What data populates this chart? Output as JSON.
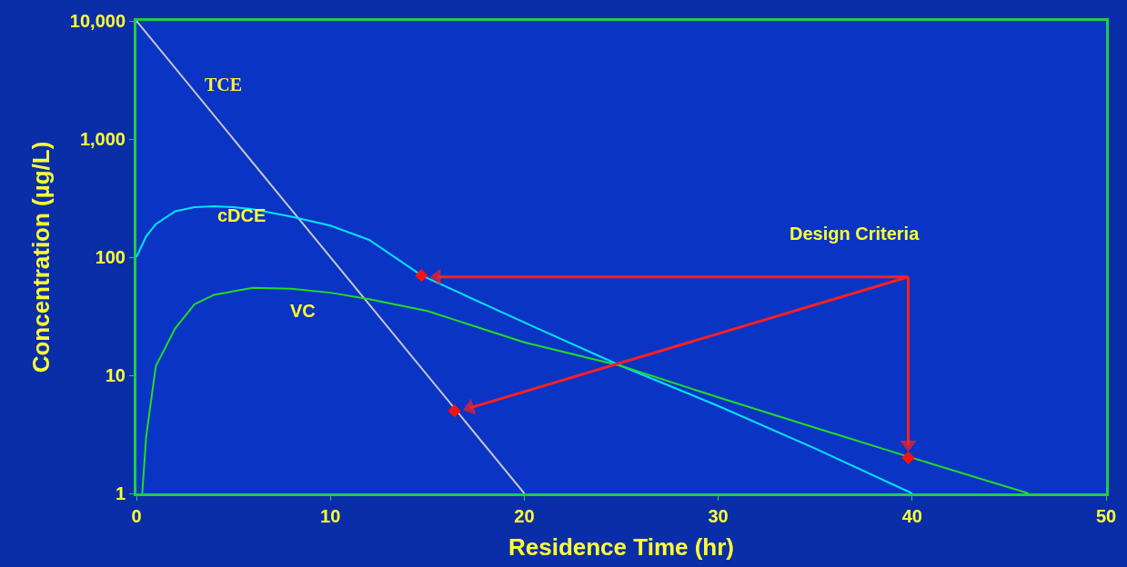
{
  "chart_data": {
    "type": "line",
    "xlabel": "Residence Time (hr)",
    "ylabel": "Concentration (µg/L)",
    "xlim": [
      0,
      50
    ],
    "xticks": [
      0,
      10,
      20,
      30,
      40,
      50
    ],
    "ylim": [
      1,
      10000
    ],
    "log": true,
    "yticks": [
      1,
      10,
      100,
      {
        "value": 1000,
        "label": "1,000"
      },
      {
        "value": 10000,
        "label": "10,000"
      }
    ],
    "grid": false,
    "marker": "none",
    "line_style": "solid",
    "series": [
      {
        "name": "TCE",
        "color": "#c8c8c8",
        "x": [
          0,
          20
        ],
        "values": [
          10000,
          1
        ]
      },
      {
        "name": "cDCE",
        "color": "#00e5ff",
        "x": [
          0,
          0.5,
          1,
          2,
          3,
          4,
          5,
          6,
          8,
          10,
          12,
          14.7,
          20,
          25,
          30,
          35,
          40
        ],
        "values": [
          100,
          150,
          190,
          245,
          265,
          270,
          265,
          255,
          220,
          185,
          140,
          70,
          28,
          12,
          5.5,
          2.4,
          1
        ]
      },
      {
        "name": "VC",
        "color": "#22dd22",
        "x": [
          0.3,
          0.5,
          1,
          2,
          3,
          4,
          6,
          8,
          10,
          12,
          15,
          20,
          25,
          30,
          35,
          40,
          46
        ],
        "values": [
          1,
          3,
          12,
          25,
          40,
          48,
          55,
          54,
          50,
          44,
          35,
          19,
          12,
          6.5,
          3.6,
          2,
          1
        ]
      },
      {
        "type": "scatter",
        "marker": "diamond",
        "color": "#ff1010",
        "x": [
          14.7,
          16.4,
          39.8
        ],
        "values": [
          70,
          5,
          2
        ]
      },
      {
        "type": "line",
        "marker": "triangle",
        "color": "#ff2020",
        "x": [
          39.8,
          15.5
        ],
        "values": [
          68,
          68
        ]
      },
      {
        "type": "line",
        "marker": "triangle",
        "color": "#ff2020",
        "x": [
          39.8,
          17.2
        ],
        "values": [
          68,
          5.3
        ]
      },
      {
        "type": "line",
        "marker": "triangle",
        "color": "#ff2020",
        "x": [
          39.8,
          39.8
        ],
        "values": [
          68,
          2.6
        ]
      }
    ],
    "annotations": [
      "Design Criteria"
    ]
  }
}
